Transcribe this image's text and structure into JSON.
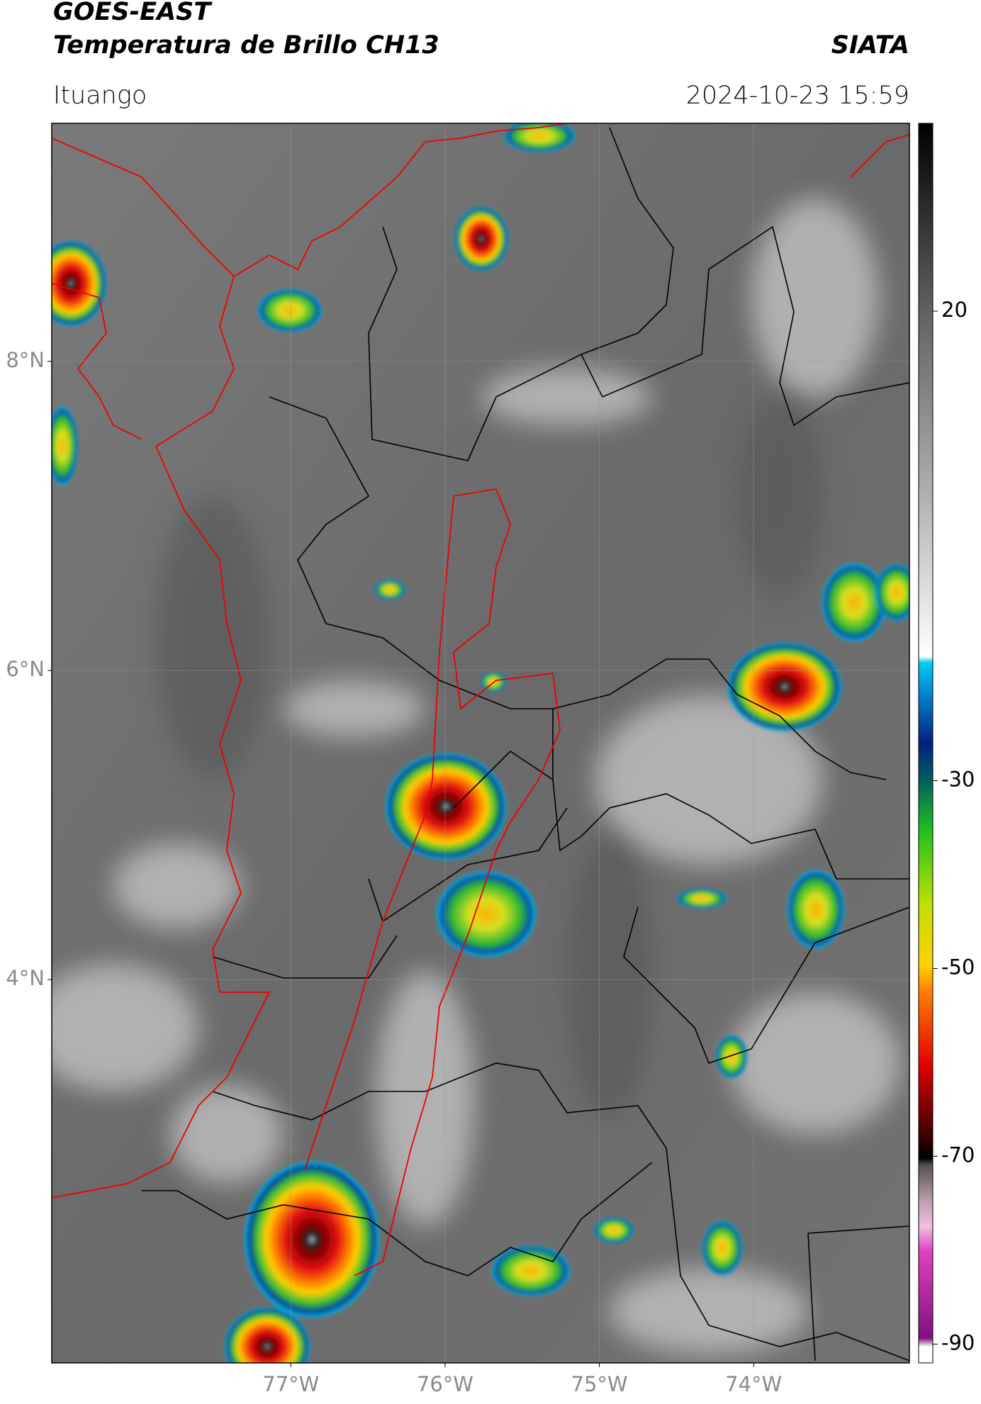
{
  "header": {
    "title": "GOES-EAST",
    "subtitle": "Temperatura de Brillo CH13",
    "agency": "SIATA",
    "location": "Ituango",
    "datetime": "2024-10-23 15:59"
  },
  "map": {
    "latlim": [
      1.52,
      9.54
    ],
    "lonlim": [
      -78.55,
      -72.99
    ],
    "grid": true,
    "latticks": [
      {
        "value": 8,
        "label": "8°N"
      },
      {
        "value": 6,
        "label": "6°N"
      },
      {
        "value": 4,
        "label": "4°N"
      }
    ],
    "lonticks": [
      {
        "value": -77,
        "label": "77°W"
      },
      {
        "value": -76,
        "label": "76°W"
      },
      {
        "value": -75,
        "label": "75°W"
      },
      {
        "value": -74,
        "label": "74°W"
      }
    ]
  },
  "colorbar": {
    "lim": [
      -92,
      40
    ],
    "ticks": [
      20,
      -30,
      -50,
      -70,
      -90
    ]
  }
}
